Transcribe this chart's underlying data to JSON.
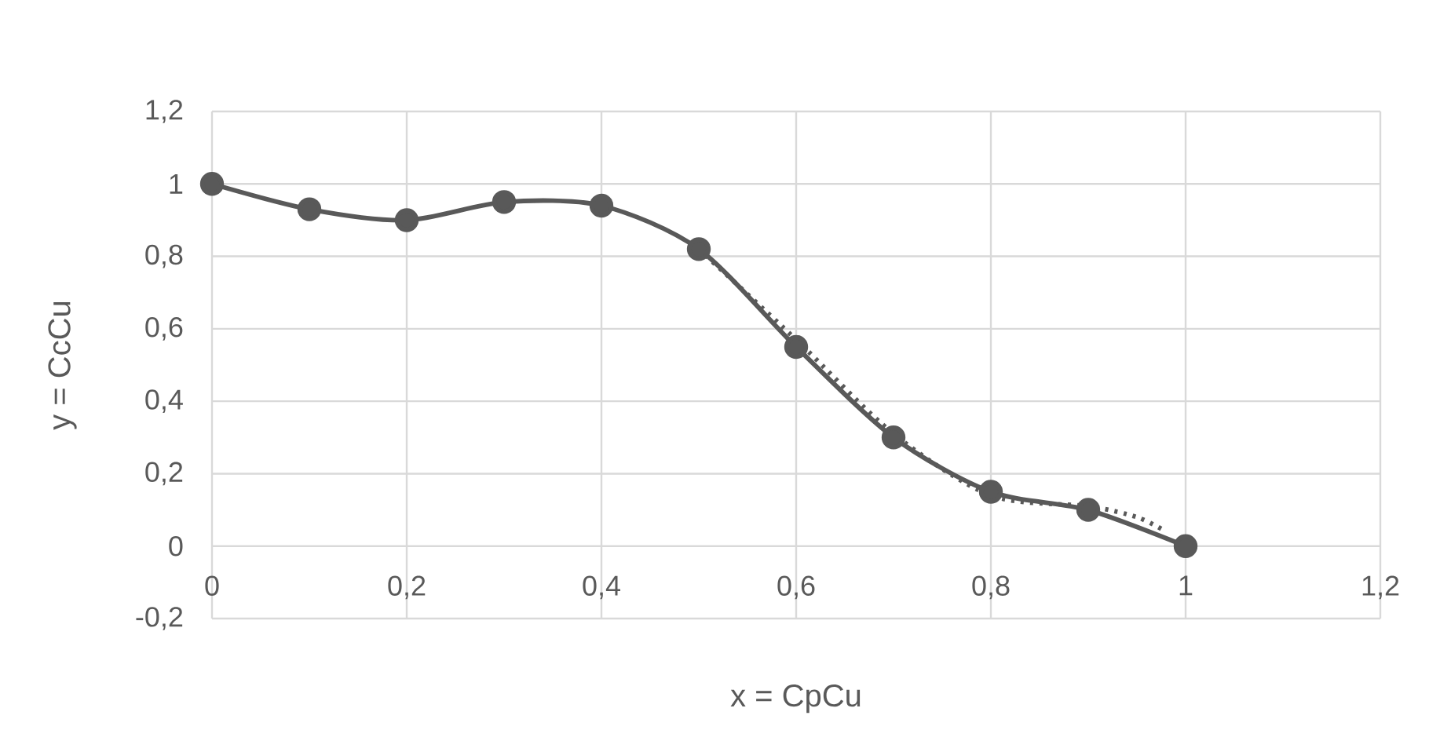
{
  "chart_data": {
    "type": "line",
    "xlabel": "x = CpCu",
    "ylabel": "y = CcCu",
    "xlim": [
      0,
      1.2
    ],
    "ylim": [
      -0.2,
      1.2
    ],
    "xticks": [
      0,
      {
        "value": 0.2,
        "label": "0,2"
      },
      {
        "value": 0.4,
        "label": "0,4"
      },
      {
        "value": 0.6,
        "label": "0,6"
      },
      {
        "value": 0.8,
        "label": "0,8"
      },
      1,
      {
        "value": 1.2,
        "label": "1,2"
      }
    ],
    "yticks": [
      {
        "value": -0.2,
        "label": "-0,2"
      },
      0,
      {
        "value": 0.2,
        "label": "0,2"
      },
      {
        "value": 0.4,
        "label": "0,4"
      },
      {
        "value": 0.6,
        "label": "0,6"
      },
      {
        "value": 0.8,
        "label": "0,8"
      },
      1,
      {
        "value": 1.2,
        "label": "1,2"
      }
    ],
    "grid": true,
    "series": [
      {
        "color": "#595959",
        "marker": "circle",
        "line_style": "solid",
        "x": [
          0,
          0.1,
          0.2,
          0.3,
          0.4,
          0.5,
          0.6,
          0.7,
          0.8,
          0.9,
          1
        ],
        "values": [
          1,
          0.93,
          0.9,
          0.95,
          0.94,
          0.82,
          0.55,
          0.3,
          0.15,
          0.1,
          0
        ]
      },
      {
        "color": "#595959",
        "marker": "none",
        "line_style": "dotted",
        "x": [
          0.5,
          0.6,
          0.7,
          0.8,
          0.9,
          0.95,
          0.98
        ],
        "values": [
          0.82,
          0.57,
          0.31,
          0.14,
          0.11,
          0.08,
          0.04
        ]
      }
    ]
  }
}
